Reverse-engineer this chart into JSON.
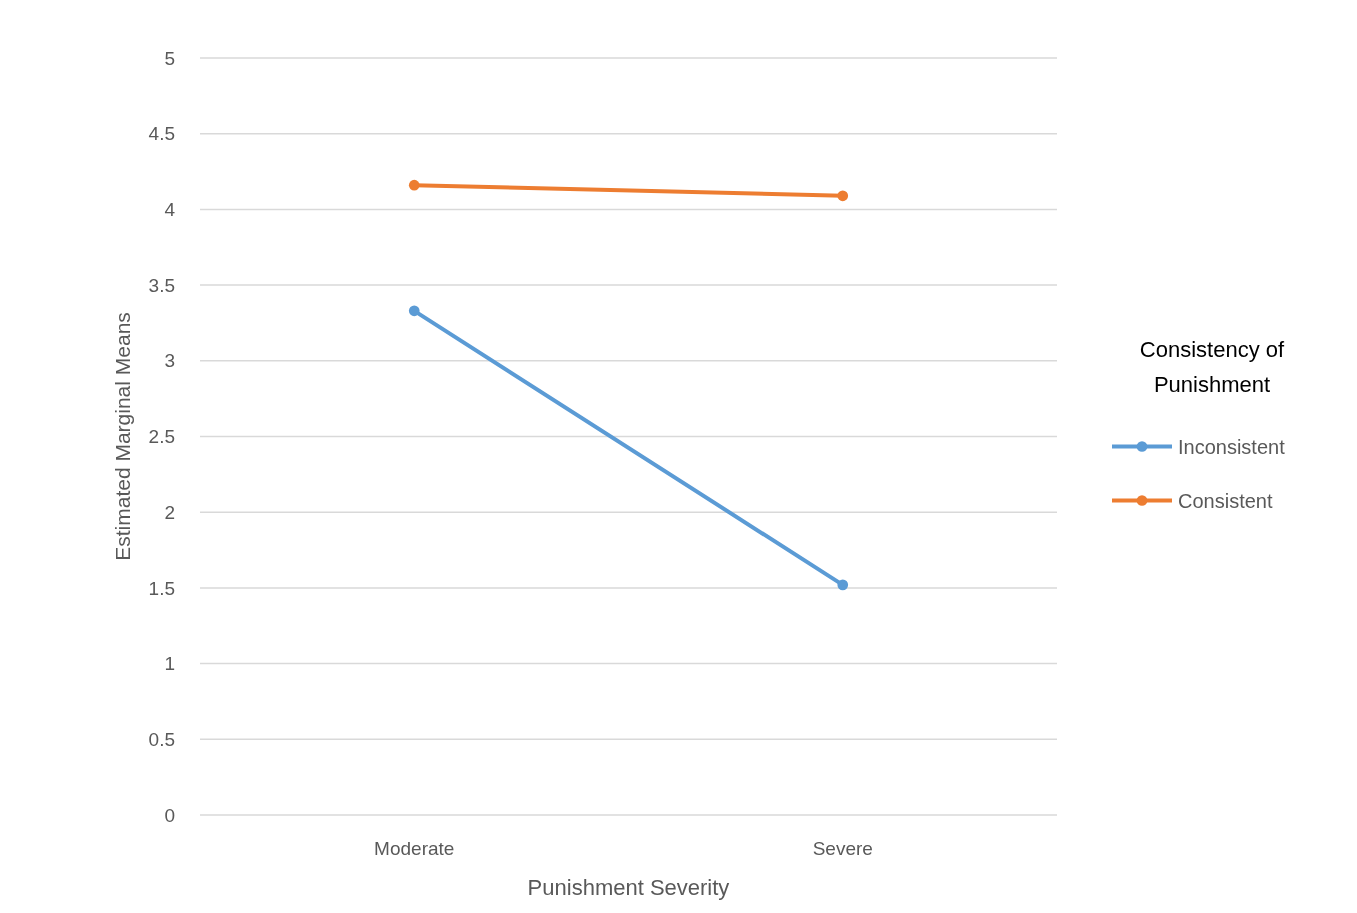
{
  "chart_data": {
    "type": "line",
    "xlabel": "Punishment Severity",
    "ylabel": "Estimated Marginal Means",
    "legend_title": "Consistency of Punishment",
    "categories": [
      "Moderate",
      "Severe"
    ],
    "series": [
      {
        "name": "Inconsistent",
        "color": "#5b9bd5",
        "values": [
          3.33,
          1.52
        ]
      },
      {
        "name": "Consistent",
        "color": "#ed7d31",
        "values": [
          4.16,
          4.09
        ]
      }
    ],
    "ylim": [
      0,
      5
    ],
    "yticks": [
      0,
      0.5,
      1,
      1.5,
      2,
      2.5,
      3,
      3.5,
      4,
      4.5,
      5
    ],
    "grid": "y",
    "legend": "right",
    "marker": "circle"
  }
}
